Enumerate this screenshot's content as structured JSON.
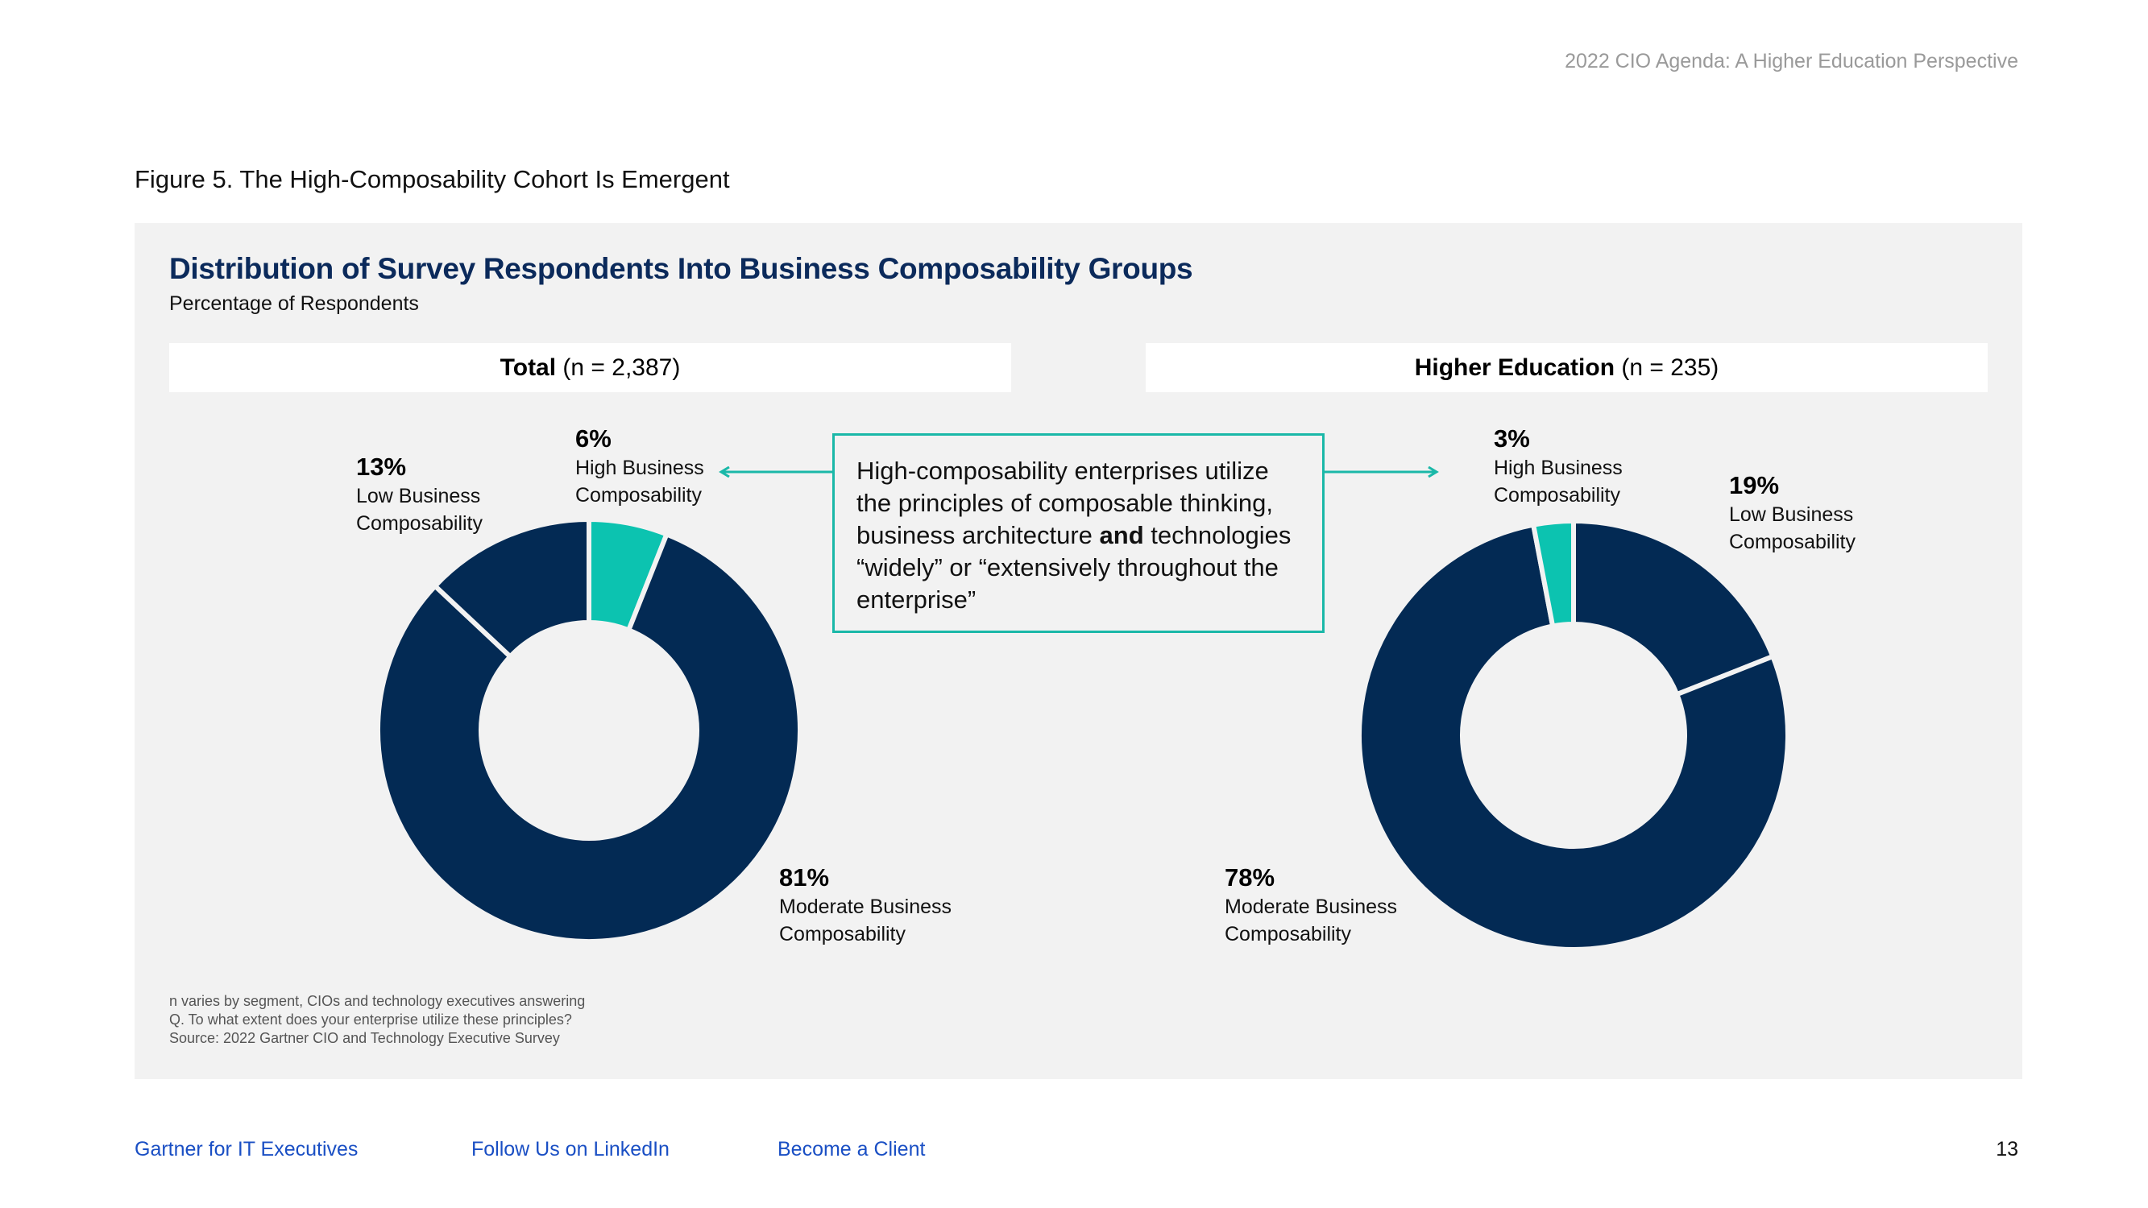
{
  "header": {
    "title": "2022 CIO Agenda: A Higher Education Perspective"
  },
  "figure": {
    "caption": "Figure 5. The High-Composability Cohort Is Emergent"
  },
  "colors": {
    "navy": "#032a54",
    "teal": "#0cc3b0",
    "callout_border": "#1ab8a8",
    "link": "#1a4fc4"
  },
  "chart_data": [
    {
      "type": "pie",
      "title": "Distribution of Survey Respondents Into Business Composability Groups",
      "subtitle": "Percentage of Respondents",
      "group_bold": "Total",
      "group_rest": " (n = 2,387)",
      "categories": [
        "High Business Composability",
        "Moderate Business Composability",
        "Low Business Composability"
      ],
      "values": [
        6,
        81,
        13
      ],
      "value_labels": [
        "6%",
        "81%",
        "13%"
      ],
      "label_line1": [
        "High Business",
        "Moderate Business",
        "Low Business"
      ],
      "label_line2": [
        "Composability",
        "Composability",
        "Composability"
      ],
      "colors": [
        "#0cc3b0",
        "#032a54",
        "#032a54"
      ]
    },
    {
      "type": "pie",
      "title": "Distribution of Survey Respondents Into Business Composability Groups",
      "subtitle": "Percentage of Respondents",
      "group_bold": "Higher Education",
      "group_rest": " (n = 235)",
      "categories": [
        "Low Business Composability",
        "Moderate Business Composability",
        "High Business Composability"
      ],
      "values": [
        19,
        78,
        3
      ],
      "value_labels": [
        "19%",
        "78%",
        "3%"
      ],
      "label_line1": [
        "Low Business",
        "Moderate Business",
        "High Business"
      ],
      "label_line2": [
        "Composability",
        "Composability",
        "Composability"
      ],
      "colors": [
        "#032a54",
        "#032a54",
        "#0cc3b0"
      ]
    }
  ],
  "callout": {
    "part1": "High-composability enterprises utilize the principles of composable thinking, business architecture ",
    "bold": "and",
    "part2": " technologies “widely” or “extensively throughout the enterprise”"
  },
  "footnotes": [
    "n varies by segment, CIOs and technology executives answering",
    "Q. To what extent does your enterprise utilize these principles?",
    "Source: 2022 Gartner CIO and Technology Executive Survey"
  ],
  "footer": {
    "links": [
      "Gartner for IT Executives",
      "Follow Us on LinkedIn",
      "Become a Client"
    ],
    "page_number": "13"
  }
}
